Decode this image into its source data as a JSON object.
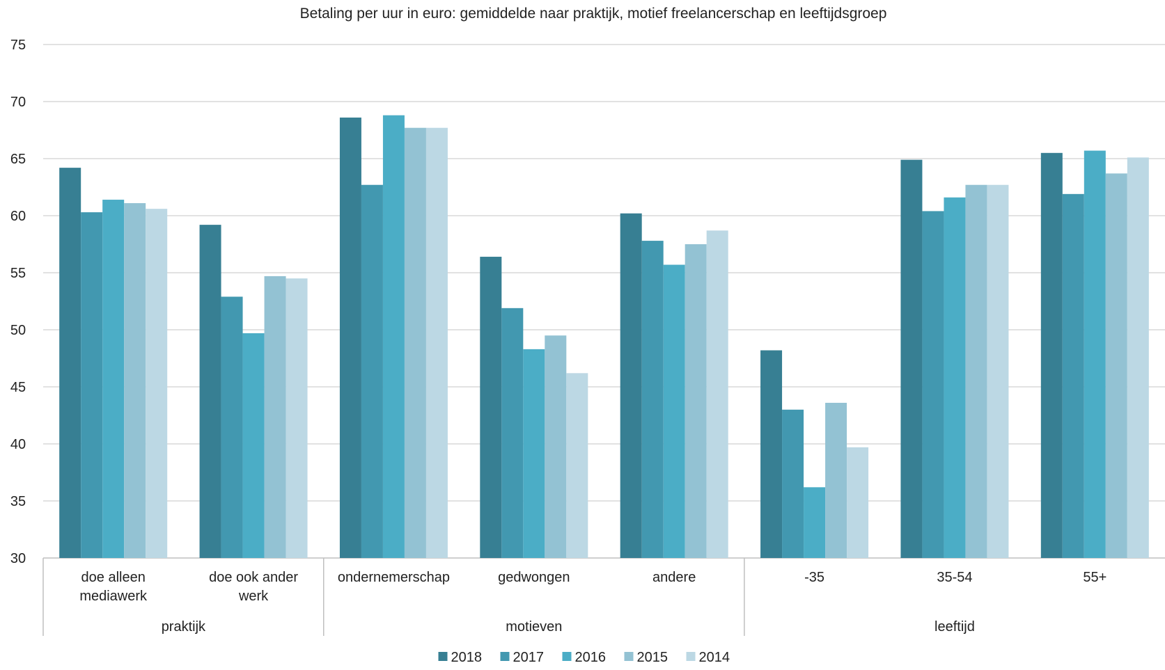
{
  "chart_data": {
    "type": "bar",
    "title": "Betaling per uur in euro: gemiddelde naar praktijk, motief freelancerschap en leeftijdsgroep",
    "xlabel": "",
    "ylabel": "",
    "ylim": [
      30,
      75
    ],
    "yticks": [
      30,
      35,
      40,
      45,
      50,
      55,
      60,
      65,
      70,
      75
    ],
    "grid": true,
    "legend_position": "bottom",
    "categories": [
      [
        "doe alleen",
        "mediawerk"
      ],
      [
        "doe ook ander",
        "werk"
      ],
      [
        "ondernemerschap"
      ],
      [
        "gedwongen"
      ],
      [
        "andere"
      ],
      [
        "-35"
      ],
      [
        "35-54"
      ],
      [
        "55+"
      ]
    ],
    "groups": [
      {
        "label": "praktijk",
        "categories": [
          0,
          1
        ]
      },
      {
        "label": "motieven",
        "categories": [
          2,
          3,
          4
        ]
      },
      {
        "label": "leeftijd",
        "categories": [
          5,
          6,
          7
        ]
      }
    ],
    "series": [
      {
        "name": "2018",
        "color": "#377f93",
        "values": [
          64.2,
          59.2,
          68.6,
          56.4,
          60.2,
          48.2,
          64.9,
          65.5
        ]
      },
      {
        "name": "2017",
        "color": "#4298b0",
        "values": [
          60.3,
          52.9,
          62.7,
          51.9,
          57.8,
          43.0,
          60.4,
          61.9
        ]
      },
      {
        "name": "2016",
        "color": "#4badc6",
        "values": [
          61.4,
          49.7,
          68.8,
          48.3,
          55.7,
          36.2,
          61.6,
          65.7
        ]
      },
      {
        "name": "2015",
        "color": "#93c2d3",
        "values": [
          61.1,
          54.7,
          67.7,
          49.5,
          57.5,
          43.6,
          62.7,
          63.7
        ]
      },
      {
        "name": "2014",
        "color": "#bcd8e4",
        "values": [
          60.6,
          54.5,
          67.7,
          46.2,
          58.7,
          39.7,
          62.7,
          65.1
        ]
      }
    ]
  }
}
